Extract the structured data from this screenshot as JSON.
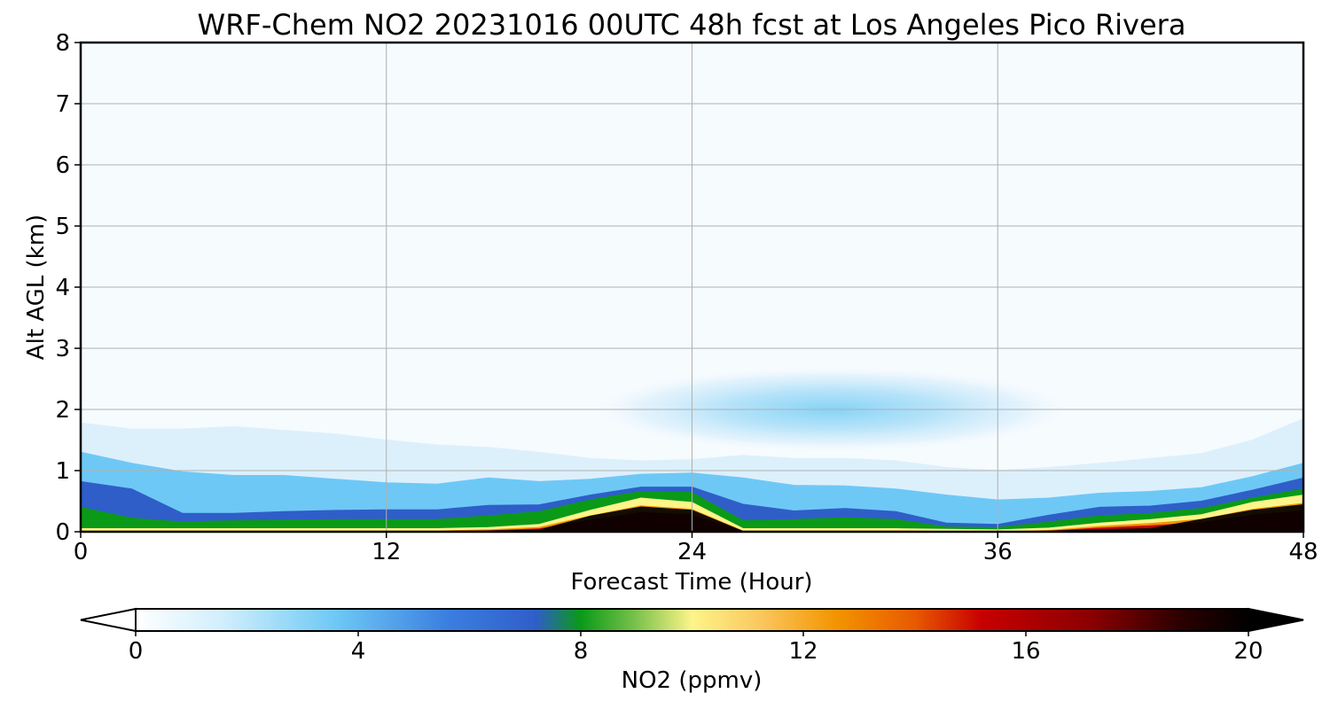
{
  "chart_data": {
    "type": "heatmap",
    "title": "WRF-Chem NO2  20231016 00UTC 48h fcst at Los Angeles Pico Rivera",
    "xlabel": "Forecast Time (Hour)",
    "ylabel": "Alt AGL (km)",
    "xlim": [
      0,
      48
    ],
    "ylim": [
      0,
      8
    ],
    "x_ticks": [
      0,
      12,
      24,
      36,
      48
    ],
    "y_ticks": [
      0,
      1,
      2,
      3,
      4,
      5,
      6,
      7,
      8
    ],
    "grid": true,
    "colorbar": {
      "label": "NO2  (ppmv)",
      "min": 0,
      "max": 20,
      "ticks": [
        0,
        4,
        8,
        12,
        16,
        20
      ],
      "extend": "both",
      "colors": {
        "background": "#f6fbfe",
        "light_blue": "#6ec8f5",
        "blue": "#2f5ec8",
        "green": "#0a9a18",
        "yellow": "#fdf48a",
        "orange": "#f39400",
        "red": "#c80000",
        "dark_red": "#6a0000",
        "black": "#000000"
      }
    },
    "x_hours": [
      0,
      2,
      4,
      6,
      8,
      10,
      12,
      14,
      16,
      18,
      20,
      22,
      24,
      26,
      28,
      30,
      32,
      34,
      36,
      38,
      40,
      42,
      44,
      46,
      48
    ],
    "series": [
      {
        "values": [
          0.05,
          0.05,
          0.05,
          0.05,
          0.05,
          0.05,
          0.05,
          0.05,
          0.07,
          0.12,
          0.35,
          0.55,
          0.48,
          0.05,
          0.05,
          0.05,
          0.05,
          0.04,
          0.03,
          0.06,
          0.14,
          0.2,
          0.28,
          0.48,
          0.6
        ]
      },
      {
        "values": [
          0.4,
          0.22,
          0.16,
          0.18,
          0.19,
          0.2,
          0.2,
          0.2,
          0.26,
          0.33,
          0.52,
          0.66,
          0.64,
          0.18,
          0.2,
          0.23,
          0.2,
          0.08,
          0.07,
          0.16,
          0.26,
          0.3,
          0.38,
          0.55,
          0.7
        ]
      },
      {
        "values": [
          0.82,
          0.7,
          0.3,
          0.3,
          0.33,
          0.35,
          0.36,
          0.36,
          0.43,
          0.44,
          0.6,
          0.73,
          0.73,
          0.45,
          0.34,
          0.38,
          0.33,
          0.14,
          0.12,
          0.27,
          0.4,
          0.42,
          0.5,
          0.68,
          0.88
        ]
      },
      {
        "values": [
          1.3,
          1.12,
          0.98,
          0.92,
          0.92,
          0.86,
          0.8,
          0.78,
          0.88,
          0.82,
          0.86,
          0.94,
          0.96,
          0.88,
          0.76,
          0.75,
          0.7,
          0.6,
          0.52,
          0.55,
          0.63,
          0.66,
          0.72,
          0.9,
          1.12
        ]
      },
      {
        "values": [
          1.78,
          1.68,
          1.68,
          1.72,
          1.66,
          1.6,
          1.5,
          1.42,
          1.38,
          1.3,
          1.2,
          1.16,
          1.18,
          1.25,
          1.2,
          1.2,
          1.16,
          1.05,
          1.0,
          1.05,
          1.12,
          1.2,
          1.28,
          1.5,
          1.85
        ]
      }
    ],
    "elevated_plume": {
      "x_center": 29.5,
      "y_center": 2.0,
      "x_halfwidth": 9.5,
      "y_halfwidth": 0.7
    }
  }
}
